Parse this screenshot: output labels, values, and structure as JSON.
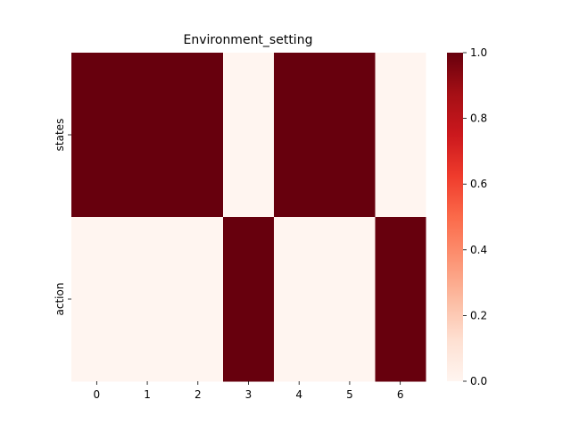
{
  "chart_data": {
    "type": "heatmap",
    "title": "Environment_setting",
    "xlabel": "",
    "ylabel": "",
    "x_categories": [
      "0",
      "1",
      "2",
      "3",
      "4",
      "5",
      "6"
    ],
    "y_categories": [
      "states",
      "action"
    ],
    "values": [
      [
        1,
        1,
        1,
        0,
        1,
        1,
        0
      ],
      [
        0,
        0,
        0,
        1,
        0,
        0,
        1
      ]
    ],
    "colormap": "Reds",
    "colorbar": {
      "range": [
        0.0,
        1.0
      ],
      "ticks": [
        "0.0",
        "0.2",
        "0.4",
        "0.6",
        "0.8",
        "1.0"
      ]
    },
    "colors": {
      "high": "#67000d",
      "low": "#fff5f0"
    },
    "grid": false
  }
}
